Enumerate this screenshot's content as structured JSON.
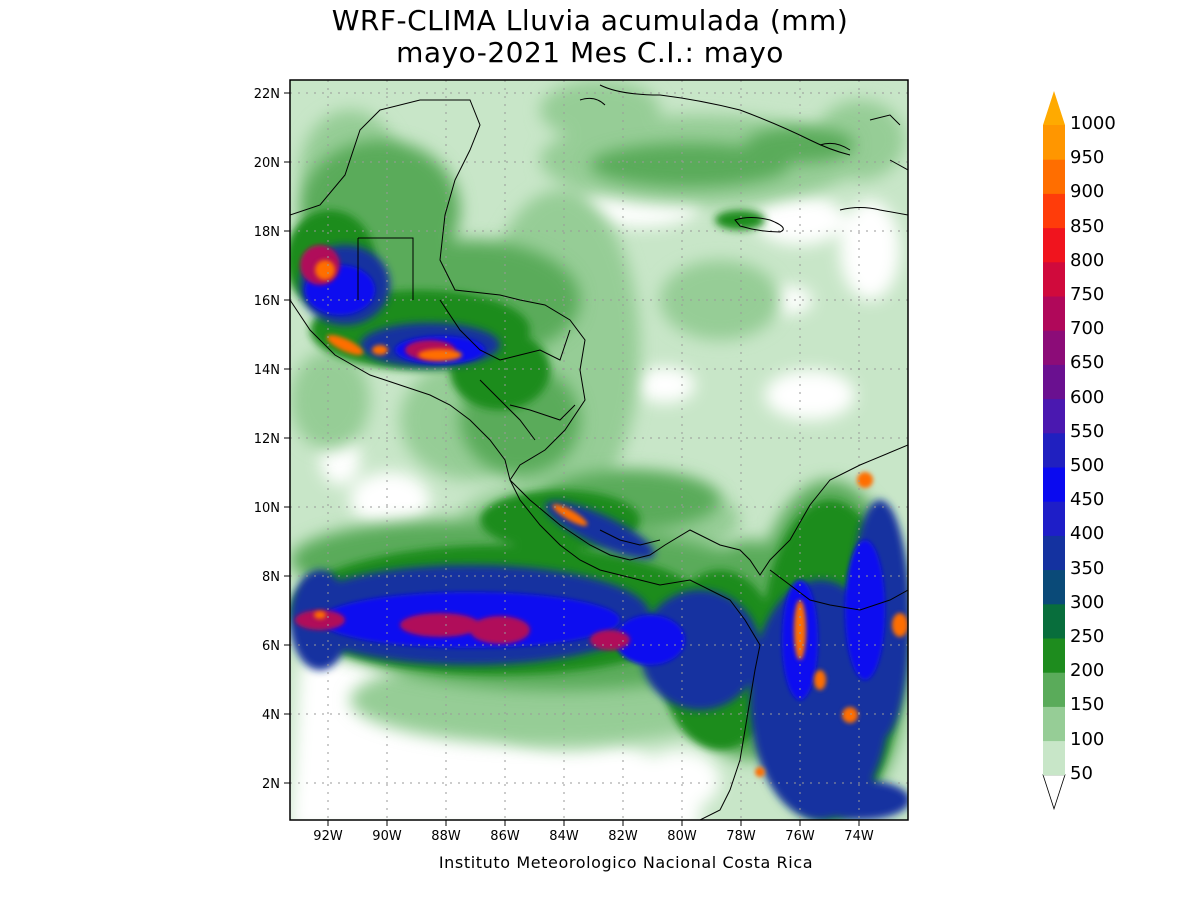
{
  "title_line1": "WRF-CLIMA Lluvia acumulada (mm)",
  "title_line2": "mayo-2021 Mes C.I.: mayo",
  "credit": "Instituto Meteorologico Nacional Costa Rica",
  "map": {
    "lat_labels": [
      "22N",
      "20N",
      "18N",
      "16N",
      "14N",
      "12N",
      "10N",
      "8N",
      "6N",
      "4N",
      "2N"
    ],
    "lon_labels": [
      "92W",
      "90W",
      "88W",
      "86W",
      "84W",
      "82W",
      "80W",
      "78W",
      "76W",
      "74W"
    ],
    "lat_range": [
      1,
      22.5
    ],
    "lon_range": [
      -93.3,
      -72.4
    ]
  },
  "colorbar": {
    "levels": [
      "50",
      "100",
      "150",
      "200",
      "250",
      "300",
      "350",
      "400",
      "450",
      "500",
      "550",
      "600",
      "650",
      "700",
      "750",
      "800",
      "850",
      "900",
      "950",
      "1000"
    ],
    "colors": [
      "#ffffff",
      "#c8e6c8",
      "#96cd96",
      "#5aab5a",
      "#1e8c1e",
      "#086e3c",
      "#0a4a78",
      "#1432a0",
      "#1e1ec8",
      "#0a0af0",
      "#2020c0",
      "#4a18b0",
      "#6a1090",
      "#8c0c78",
      "#b0085a",
      "#d00a3c",
      "#f0141e",
      "#ff3c0a",
      "#ff6e00",
      "#ff9600",
      "#ffaa00"
    ]
  }
}
